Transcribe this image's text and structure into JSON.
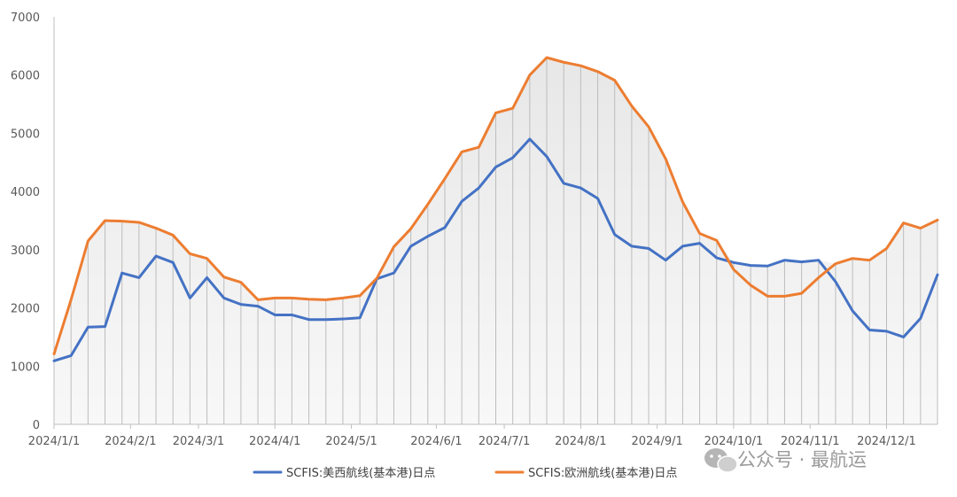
{
  "chart_data": {
    "type": "line",
    "title": "",
    "xlabel": "",
    "ylabel": "",
    "ylim": [
      0,
      7000
    ],
    "yticks": [
      0,
      1000,
      2000,
      3000,
      4000,
      5000,
      6000,
      7000
    ],
    "x_tick_labels": [
      "2024/1/1",
      "2024/2/1",
      "2024/3/1",
      "2024/4/1",
      "2024/5/1",
      "2024/6/1",
      "2024/7/1",
      "2024/8/1",
      "2024/9/1",
      "2024/10/1",
      "2024/11/1",
      "2024/12/1"
    ],
    "x_tick_index": [
      0,
      4.5,
      8.5,
      13,
      17.5,
      22.5,
      26.5,
      31,
      35.5,
      40,
      44.5,
      49
    ],
    "grid": "vertical drop lines at each data point",
    "area_fill": "light gray gradient under upper series",
    "legend_position": "bottom",
    "series": [
      {
        "name": "SCFIS:美西航线(基本港)日点",
        "color": "#4472c4",
        "values": [
          1090,
          1180,
          1670,
          1680,
          2600,
          2520,
          2890,
          2780,
          2170,
          2520,
          2170,
          2060,
          2030,
          1880,
          1880,
          1800,
          1800,
          1810,
          1830,
          2500,
          2600,
          3060,
          3230,
          3380,
          3830,
          4060,
          4420,
          4580,
          4900,
          4600,
          4140,
          4060,
          3880,
          3260,
          3060,
          3020,
          2820,
          3060,
          3110,
          2860,
          2780,
          2730,
          2720,
          2820,
          2790,
          2820,
          2450,
          1950,
          1620,
          1600,
          1500,
          1820,
          2570
        ]
      },
      {
        "name": "SCFIS:欧洲航线(基本港)日点",
        "color": "#ed7d31",
        "values": [
          1210,
          2140,
          3150,
          3500,
          3490,
          3470,
          3370,
          3250,
          2930,
          2850,
          2530,
          2440,
          2140,
          2170,
          2170,
          2150,
          2140,
          2170,
          2210,
          2510,
          3050,
          3360,
          3780,
          4220,
          4680,
          4760,
          5350,
          5430,
          6000,
          6300,
          6220,
          6160,
          6060,
          5910,
          5470,
          5110,
          4560,
          3820,
          3280,
          3160,
          2660,
          2390,
          2200,
          2200,
          2250,
          2520,
          2760,
          2850,
          2820,
          3020,
          3460,
          3370,
          3510
        ]
      }
    ]
  },
  "watermark": {
    "text": "公众号 · 最航运"
  }
}
